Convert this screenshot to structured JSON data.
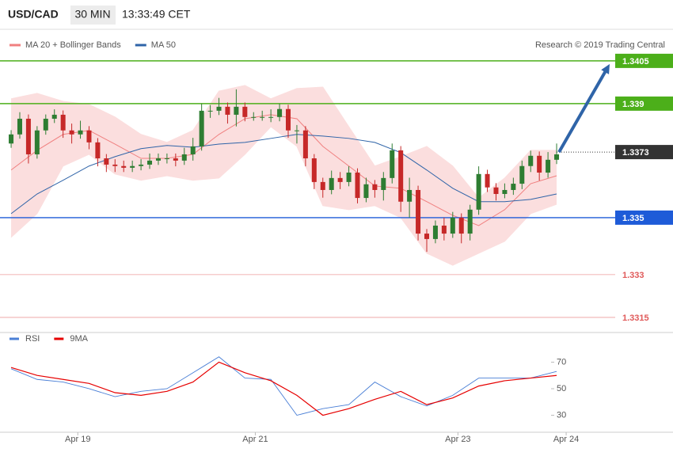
{
  "header": {
    "symbol": "USD/CAD",
    "timeframe": "30 MIN",
    "time": "13:33:49 CET",
    "attribution": "Research © 2019 Trading Central"
  },
  "chart_data": [
    {
      "type": "candlestick",
      "categories": [
        null,
        null,
        null,
        null,
        null,
        null,
        null,
        null,
        null,
        null,
        null,
        null,
        null,
        null,
        null,
        null,
        null,
        null,
        null,
        null,
        null,
        null,
        null,
        null,
        null,
        null,
        null,
        null,
        null,
        null,
        null,
        null,
        null,
        null,
        null,
        null,
        null,
        null,
        null,
        null,
        null,
        null,
        null,
        null,
        null,
        null,
        null,
        null,
        null,
        null,
        null,
        null,
        null,
        null,
        null,
        null,
        null,
        null,
        null,
        null,
        null,
        null,
        null,
        null
      ],
      "open": [
        1.3376,
        1.33792,
        1.33847,
        1.33722,
        1.33806,
        1.33847,
        1.33861,
        1.33806,
        1.33792,
        1.33806,
        1.33764,
        1.33708,
        1.33686,
        1.33681,
        1.33675,
        1.33681,
        1.33686,
        1.337,
        1.33708,
        1.33708,
        1.337,
        1.33722,
        1.3375,
        1.33875,
        1.33875,
        1.33889,
        1.33861,
        1.33889,
        1.33853,
        1.33853,
        1.33853,
        1.33853,
        1.33881,
        1.33806,
        1.33806,
        1.33708,
        1.33625,
        1.33597,
        1.33639,
        1.33625,
        1.33658,
        1.33569,
        1.33617,
        1.33597,
        1.33639,
        1.33736,
        1.33556,
        1.33597,
        1.33444,
        1.33425,
        1.33472,
        1.33444,
        1.335,
        1.33444,
        1.33528,
        1.33653,
        1.33606,
        1.33583,
        1.33597,
        1.33619,
        1.33681,
        1.33717,
        1.33658,
        1.33703
      ],
      "high": [
        1.33807,
        1.3387,
        1.33862,
        1.33821,
        1.33862,
        1.3388,
        1.33876,
        1.3383,
        1.3384,
        1.33821,
        1.33779,
        1.33723,
        1.33705,
        1.337,
        1.337,
        1.33705,
        1.33725,
        1.33725,
        1.33725,
        1.33725,
        1.33745,
        1.3378,
        1.339,
        1.33895,
        1.3392,
        1.33904,
        1.3395,
        1.33904,
        1.3387,
        1.33875,
        1.3388,
        1.339,
        1.33896,
        1.33825,
        1.33821,
        1.33723,
        1.3364,
        1.33665,
        1.3366,
        1.3368,
        1.33673,
        1.3364,
        1.33632,
        1.3366,
        1.3376,
        1.33751,
        1.3364,
        1.33612,
        1.3346,
        1.3349,
        1.335,
        1.3352,
        1.33515,
        1.33545,
        1.3368,
        1.33668,
        1.33621,
        1.3362,
        1.3364,
        1.337,
        1.33735,
        1.33732,
        1.3373,
        1.3376
      ],
      "low": [
        1.33745,
        1.33777,
        1.3369,
        1.33707,
        1.33791,
        1.33832,
        1.3378,
        1.3376,
        1.33777,
        1.3374,
        1.3368,
        1.3366,
        1.3366,
        1.3366,
        1.3366,
        1.33666,
        1.33671,
        1.33685,
        1.3369,
        1.3368,
        1.33685,
        1.337,
        1.33735,
        1.3385,
        1.3386,
        1.3383,
        1.3382,
        1.33838,
        1.3384,
        1.3384,
        1.33835,
        1.33838,
        1.3378,
        1.3376,
        1.3368,
        1.336,
        1.3357,
        1.33582,
        1.336,
        1.3361,
        1.3355,
        1.33554,
        1.3357,
        1.3356,
        1.3362,
        1.3352,
        1.335,
        1.3342,
        1.3338,
        1.3341,
        1.3342,
        1.33429,
        1.3341,
        1.3342,
        1.3351,
        1.3359,
        1.3356,
        1.33568,
        1.3358,
        1.336,
        1.3366,
        1.3363,
        1.3364,
        1.33688
      ],
      "close": [
        1.33792,
        1.33847,
        1.33722,
        1.33806,
        1.33847,
        1.33861,
        1.33806,
        1.33792,
        1.33806,
        1.33764,
        1.33708,
        1.33686,
        1.33681,
        1.33675,
        1.33681,
        1.33686,
        1.337,
        1.33708,
        1.33708,
        1.337,
        1.33722,
        1.3375,
        1.33875,
        1.33875,
        1.33889,
        1.33861,
        1.33889,
        1.33853,
        1.33853,
        1.33853,
        1.33853,
        1.33881,
        1.33806,
        1.33806,
        1.33708,
        1.33625,
        1.33597,
        1.33639,
        1.33625,
        1.33658,
        1.33569,
        1.33617,
        1.33597,
        1.33639,
        1.33736,
        1.33556,
        1.33597,
        1.33444,
        1.33425,
        1.33472,
        1.33444,
        1.335,
        1.33444,
        1.33528,
        1.33653,
        1.33606,
        1.33583,
        1.33597,
        1.33619,
        1.33681,
        1.33717,
        1.33658,
        1.33703,
        1.33722
      ],
      "up_color": "#2e7d32",
      "down_color": "#c62828",
      "xlim": [
        -0.37,
        69.58
      ],
      "ylim": [
        1.33097,
        1.34083
      ],
      "series": [
        {
          "name": "MA 20 + Bollinger Bands",
          "color": "#f08080",
          "band_color": "#fbdede",
          "x": [
            0,
            3,
            6,
            9,
            12,
            15,
            18,
            21,
            24,
            27,
            30,
            33,
            36,
            39,
            42,
            45,
            48,
            51,
            54,
            57,
            60,
            63
          ],
          "values": [
            1.33667,
            1.33736,
            1.33792,
            1.33806,
            1.33758,
            1.33708,
            1.33708,
            1.33722,
            1.33792,
            1.33847,
            1.33861,
            1.33847,
            1.3375,
            1.33681,
            1.33611,
            1.33603,
            1.33556,
            1.33508,
            1.33472,
            1.33528,
            1.33619,
            1.33647
          ],
          "upper": [
            1.33917,
            1.33936,
            1.33908,
            1.33897,
            1.33853,
            1.33792,
            1.33764,
            1.33806,
            1.33944,
            1.33964,
            1.33917,
            1.33953,
            1.33958,
            1.33819,
            1.33681,
            1.33714,
            1.3375,
            1.33681,
            1.33569,
            1.33639,
            1.33736,
            1.33736
          ],
          "lower": [
            1.33431,
            1.33514,
            1.33681,
            1.33722,
            1.33653,
            1.33631,
            1.33647,
            1.33631,
            1.33639,
            1.33722,
            1.33819,
            1.3375,
            1.33542,
            1.33528,
            1.33542,
            1.335,
            1.33375,
            1.33333,
            1.33375,
            1.33417,
            1.33514,
            1.33547
          ]
        },
        {
          "name": "MA 50",
          "color": "#2f64a8",
          "x": [
            0,
            3,
            6,
            9,
            12,
            15,
            18,
            21,
            24,
            27,
            30,
            33,
            36,
            39,
            42,
            45,
            48,
            51,
            54,
            57,
            60,
            63
          ],
          "values": [
            1.33514,
            1.33583,
            1.33631,
            1.33681,
            1.33714,
            1.33742,
            1.33753,
            1.33747,
            1.33758,
            1.33764,
            1.33778,
            1.33792,
            1.33786,
            1.33778,
            1.33764,
            1.33728,
            1.33667,
            1.33603,
            1.33556,
            1.33556,
            1.33564,
            1.33583
          ]
        }
      ],
      "levels": [
        {
          "value": 1.3405,
          "color": "#4caf1a",
          "boxed": true,
          "line": "solid"
        },
        {
          "value": 1.339,
          "color": "#4caf1a",
          "boxed": true,
          "line": "solid"
        },
        {
          "value": 1.3373,
          "color": "#333333",
          "boxed": true,
          "line": "dotted"
        },
        {
          "value": 1.335,
          "color": "#1e5bd8",
          "boxed": true,
          "line": "solid"
        },
        {
          "value": 1.333,
          "color": "#e05a5a",
          "boxed": false,
          "line": "solid"
        },
        {
          "value": 1.3315,
          "color": "#e05a5a",
          "boxed": false,
          "line": "solid"
        }
      ]
    },
    {
      "type": "line",
      "x": [
        0,
        3,
        6,
        9,
        12,
        15,
        18,
        21,
        24,
        27,
        30,
        33,
        36,
        39,
        42,
        45,
        48,
        51,
        54,
        57,
        60,
        63
      ],
      "series": [
        {
          "name": "RSI",
          "color": "#4a7fd6",
          "values": [
            65,
            57,
            55,
            50,
            44,
            48,
            50,
            62,
            74,
            58,
            57,
            30,
            35,
            38,
            55,
            44,
            37,
            45,
            58,
            58,
            58,
            63
          ]
        },
        {
          "name": "9MA",
          "color": "#e60000",
          "values": [
            66,
            60,
            57,
            54,
            47,
            45,
            48,
            55,
            70,
            62,
            56,
            45,
            30,
            35,
            42,
            48,
            38,
            43,
            52,
            56,
            58,
            60
          ]
        }
      ],
      "xlim": [
        -0.37,
        69.58
      ],
      "ylim": [
        17.8,
        80.4
      ],
      "yticks": [
        30,
        50,
        70
      ],
      "xticks": [
        {
          "value": 7.7,
          "label": "Apr 19"
        },
        {
          "value": 28.2,
          "label": "Apr 21"
        },
        {
          "value": 51.6,
          "label": "Apr 23"
        },
        {
          "value": 64.1,
          "label": "Apr 24"
        }
      ]
    }
  ]
}
